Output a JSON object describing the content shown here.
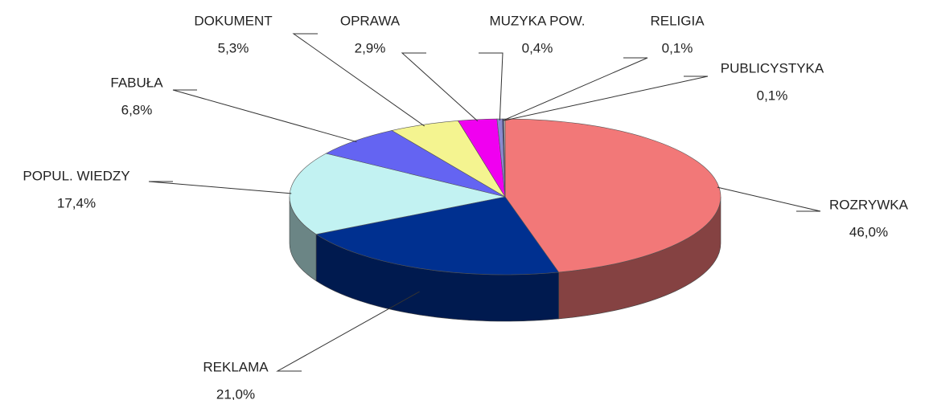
{
  "chart_data": {
    "type": "pie",
    "categories": [
      "ROZRYWKA",
      "REKLAMA",
      "POPUL. WIEDZY",
      "FABUŁA",
      "DOKUMENT",
      "OPRAWA",
      "MUZYKA POW.",
      "RELIGIA",
      "PUBLICYSTYKA"
    ],
    "values": [
      46.0,
      21.0,
      17.4,
      6.8,
      5.3,
      2.9,
      0.4,
      0.1,
      0.1
    ],
    "value_labels": [
      "46,0%",
      "21,0%",
      "17,4%",
      "6,8%",
      "5,3%",
      "2,9%",
      "0,4%",
      "0,1%",
      "0,1%"
    ],
    "colors": [
      "#f27878",
      "#003090",
      "#c2f2f2",
      "#6464f2",
      "#f4f490",
      "#f000f0",
      "#8a8ad0",
      "#404088",
      "#c8c8c8"
    ]
  }
}
